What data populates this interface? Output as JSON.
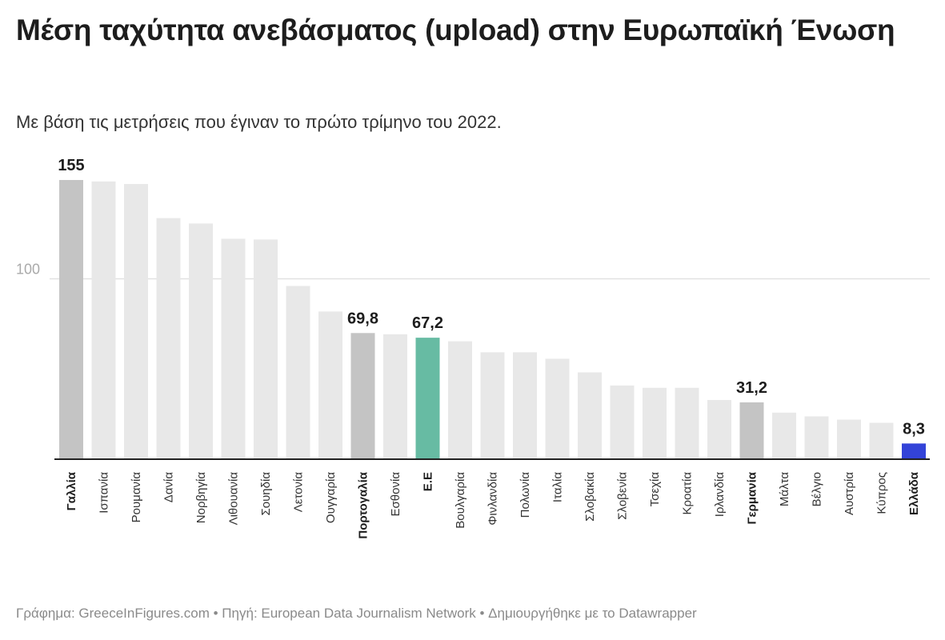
{
  "title": "Μέση ταχύτητα ανεβάσματος (upload) στην Ευρωπαϊκή Ένωση",
  "subtitle": "Με βάση τις μετρήσεις που έγιναν το πρώτο τρίμηνο του 2022.",
  "footer": "Γράφημα: GreeceInFigures.com • Πηγή: European Data Journalism Network • Δημιουργήθηκε με το Datawrapper",
  "colors": {
    "default": "#e8e8e8",
    "highlight": "#c4c4c4",
    "eu": "#67bba3",
    "greece": "#3343d8"
  },
  "chart_data": {
    "type": "bar",
    "title": "Μέση ταχύτητα ανεβάσματος (upload) στην Ευρωπαϊκή Ένωση",
    "subtitle": "Με βάση τις μετρήσεις που έγιναν το πρώτο τρίμηνο του 2022.",
    "xlabel": "",
    "ylabel": "",
    "ylim": [
      0,
      155
    ],
    "yticks": [
      100
    ],
    "grid": true,
    "categories": [
      "Γαλλία",
      "Ισπανία",
      "Ρουμανία",
      "Δανία",
      "Νορβηγία",
      "Λιθουανία",
      "Σουηδία",
      "Λετονία",
      "Ουγγαρία",
      "Πορτογαλία",
      "Εσθονία",
      "Ε.Ε",
      "Βουλγαρία",
      "Φινλανδία",
      "Πολωνία",
      "Ιταλία",
      "Σλοβακία",
      "Σλοβενία",
      "Τσεχία",
      "Κροατία",
      "Ιρλανδία",
      "Γερμανία",
      "Μάλτα",
      "Βέλγιο",
      "Αυστρία",
      "Κύπρος",
      "Ελλάδα"
    ],
    "values": [
      155,
      154.2,
      152.8,
      133.8,
      130.8,
      122.3,
      121.9,
      96,
      81.8,
      69.8,
      69.1,
      67.2,
      65.2,
      59.1,
      59.1,
      55.5,
      47.9,
      40.6,
      39.3,
      39.3,
      32.5,
      31.2,
      25.5,
      23.4,
      21.6,
      19.8,
      8.3
    ],
    "highlight": [
      "Γαλλία",
      "Πορτογαλία",
      "Ε.Ε",
      "Γερμανία",
      "Ελλάδα"
    ],
    "data_labels": {
      "Γαλλία": "155",
      "Πορτογαλία": "69,8",
      "Ε.Ε": "67,2",
      "Γερμανία": "31,2",
      "Ελλάδα": "8,3"
    }
  }
}
